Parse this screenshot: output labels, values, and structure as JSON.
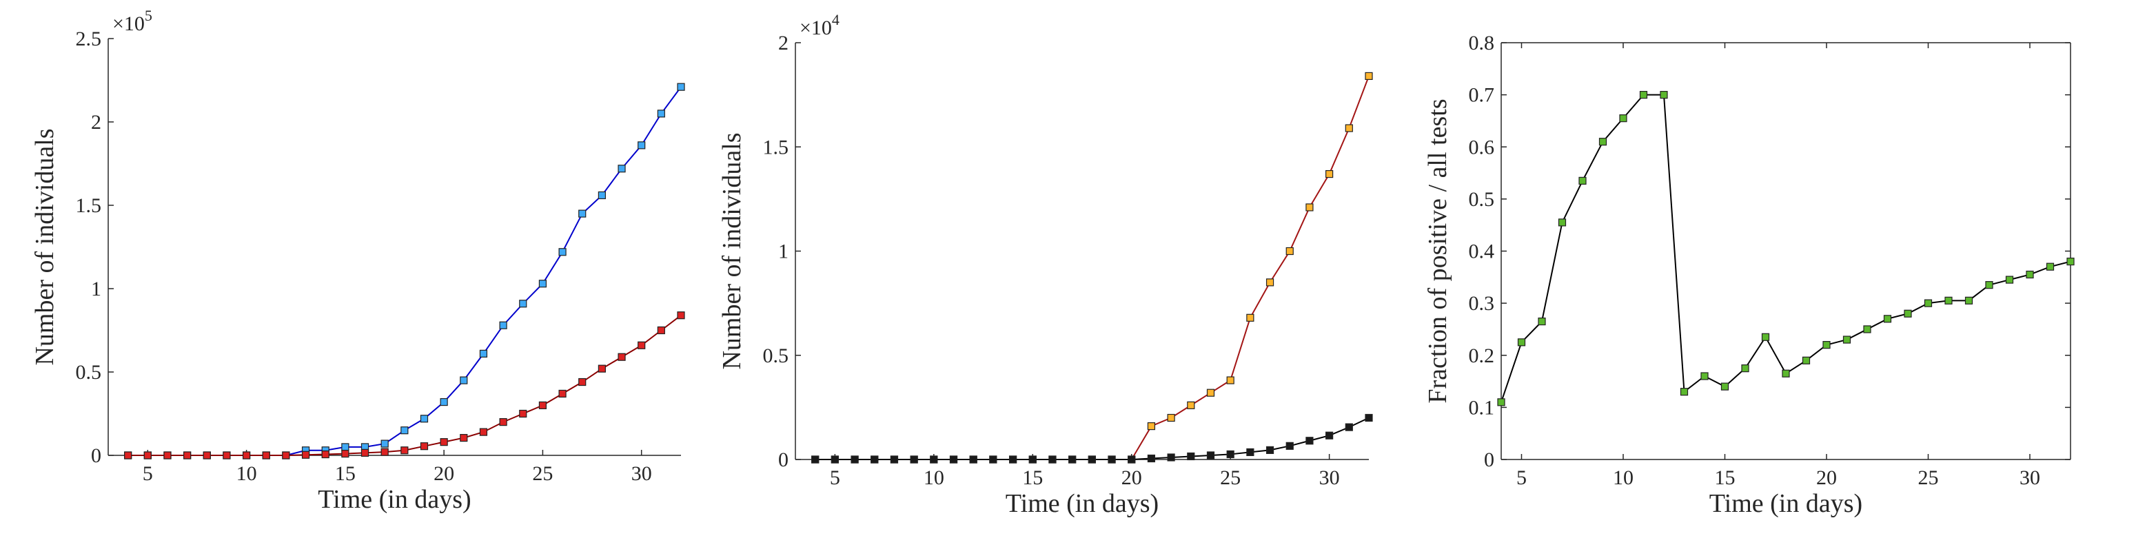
{
  "chart_data": [
    {
      "type": "line",
      "xlabel": "Time (in days)",
      "ylabel": "Number of individuals",
      "exponent_label": "×10",
      "exponent_power": "5",
      "xlim": [
        3,
        32
      ],
      "ylim": [
        0,
        2.5
      ],
      "xticks": [
        5,
        10,
        15,
        20,
        25,
        30
      ],
      "yticks": [
        0,
        0.5,
        1,
        1.5,
        2,
        2.5
      ],
      "ytick_labels": [
        "0",
        "0.5",
        "1",
        "1.5",
        "2",
        "2.5"
      ],
      "box": false,
      "x": [
        4,
        5,
        6,
        7,
        8,
        9,
        10,
        11,
        12,
        13,
        14,
        15,
        16,
        17,
        18,
        19,
        20,
        21,
        22,
        23,
        24,
        25,
        26,
        27,
        28,
        29,
        30,
        31,
        32
      ],
      "series": [
        {
          "line_color": "#0000cc",
          "marker_color": "#3fa9f5",
          "values": [
            0,
            0,
            0,
            0,
            0,
            0,
            0,
            0,
            0,
            0.03,
            0.03,
            0.05,
            0.05,
            0.07,
            0.15,
            0.22,
            0.32,
            0.45,
            0.61,
            0.78,
            0.91,
            1.03,
            1.22,
            1.45,
            1.56,
            1.72,
            1.86,
            2.05,
            2.21
          ]
        },
        {
          "line_color": "#8b0000",
          "marker_color": "#dd2222",
          "values": [
            0,
            0,
            0,
            0,
            0,
            0,
            0,
            0,
            0,
            0.003,
            0.006,
            0.01,
            0.015,
            0.02,
            0.03,
            0.055,
            0.08,
            0.105,
            0.14,
            0.2,
            0.25,
            0.3,
            0.37,
            0.44,
            0.52,
            0.59,
            0.66,
            0.75,
            0.84
          ]
        }
      ]
    },
    {
      "type": "line",
      "xlabel": "Time (in days)",
      "ylabel": "Number of individuals",
      "exponent_label": "×10",
      "exponent_power": "4",
      "xlim": [
        3,
        32
      ],
      "ylim": [
        0,
        2
      ],
      "xticks": [
        5,
        10,
        15,
        20,
        25,
        30
      ],
      "yticks": [
        0,
        0.5,
        1,
        1.5,
        2
      ],
      "ytick_labels": [
        "0",
        "0.5",
        "1",
        "1.5",
        "2"
      ],
      "box": false,
      "x": [
        4,
        5,
        6,
        7,
        8,
        9,
        10,
        11,
        12,
        13,
        14,
        15,
        16,
        17,
        18,
        19,
        20,
        21,
        22,
        23,
        24,
        25,
        26,
        27,
        28,
        29,
        30,
        31,
        32
      ],
      "series": [
        {
          "line_color": "#a31515",
          "marker_color": "#ffb52e",
          "values": [
            0,
            0,
            0,
            0,
            0,
            0,
            0,
            0,
            0,
            0,
            0,
            0,
            0,
            0,
            0,
            0,
            0,
            0.16,
            0.2,
            0.26,
            0.32,
            0.38,
            0.68,
            0.85,
            1.0,
            1.21,
            1.37,
            1.59,
            1.84
          ]
        },
        {
          "line_color": "#000000",
          "marker_color": "#1a1a1a",
          "values": [
            0,
            0,
            0,
            0,
            0,
            0,
            0,
            0,
            0,
            0,
            0,
            0,
            0,
            0,
            0,
            0,
            0,
            0.005,
            0.01,
            0.015,
            0.02,
            0.025,
            0.035,
            0.045,
            0.065,
            0.09,
            0.115,
            0.155,
            0.2
          ]
        }
      ]
    },
    {
      "type": "line",
      "xlabel": "Time (in days)",
      "ylabel": "Fraction of positive / all tests",
      "xlim": [
        4,
        32
      ],
      "ylim": [
        0,
        0.8
      ],
      "xticks": [
        5,
        10,
        15,
        20,
        25,
        30
      ],
      "yticks": [
        0,
        0.1,
        0.2,
        0.3,
        0.4,
        0.5,
        0.6,
        0.7,
        0.8
      ],
      "ytick_labels": [
        "0",
        "0.1",
        "0.2",
        "0.3",
        "0.4",
        "0.5",
        "0.6",
        "0.7",
        "0.8"
      ],
      "box": true,
      "x": [
        4,
        5,
        6,
        7,
        8,
        9,
        10,
        11,
        12,
        13,
        14,
        15,
        16,
        17,
        18,
        19,
        20,
        21,
        22,
        23,
        24,
        25,
        26,
        27,
        28,
        29,
        30,
        31,
        32
      ],
      "series": [
        {
          "line_color": "#000000",
          "marker_color": "#5cb82e",
          "values": [
            0.11,
            0.225,
            0.265,
            0.455,
            0.535,
            0.61,
            0.655,
            0.7,
            0.7,
            0.13,
            0.16,
            0.14,
            0.175,
            0.235,
            0.165,
            0.19,
            0.22,
            0.23,
            0.25,
            0.27,
            0.28,
            0.3,
            0.305,
            0.305,
            0.335,
            0.345,
            0.355,
            0.37,
            0.38
          ]
        }
      ]
    }
  ]
}
